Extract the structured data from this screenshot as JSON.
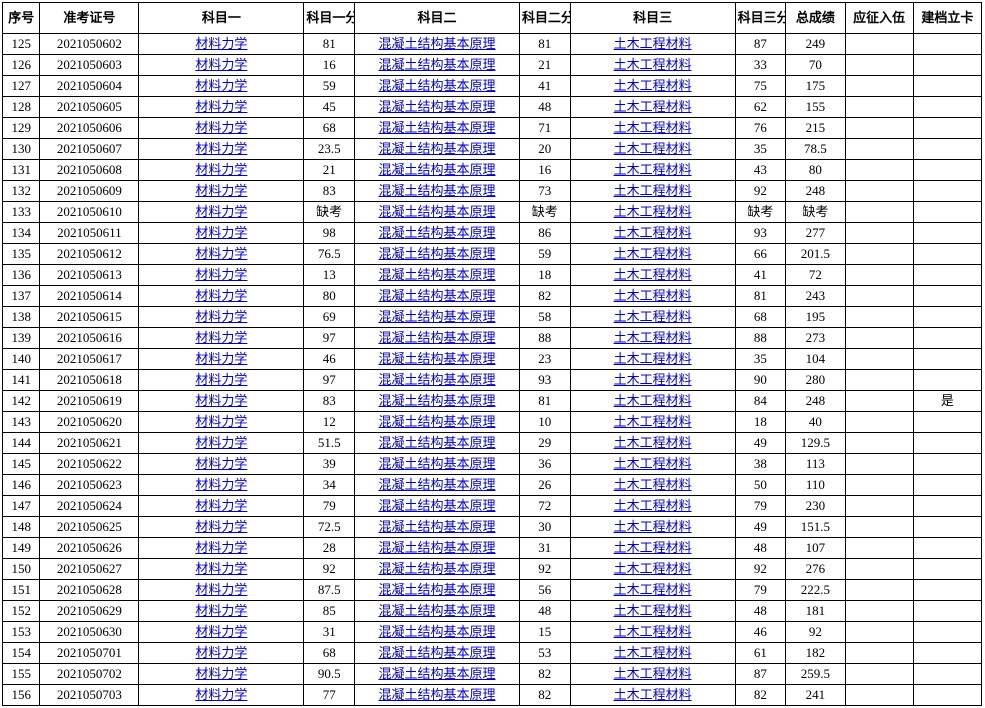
{
  "table": {
    "headers": [
      "序号",
      "准考证号",
      "科目一",
      "科目一分数",
      "科目二",
      "科目二分数",
      "科目三",
      "科目三分数",
      "总成绩",
      "应征入伍",
      "建档立卡"
    ],
    "subject1_name": "材料力学",
    "subject2_name": "混凝土结构基本原理",
    "subject3_name": "土木工程材料",
    "rows": [
      {
        "seq": "125",
        "id": "2021050602",
        "s1": "81",
        "s2": "81",
        "s3": "87",
        "tot": "249",
        "a": "",
        "b": ""
      },
      {
        "seq": "126",
        "id": "2021050603",
        "s1": "16",
        "s2": "21",
        "s3": "33",
        "tot": "70",
        "a": "",
        "b": ""
      },
      {
        "seq": "127",
        "id": "2021050604",
        "s1": "59",
        "s2": "41",
        "s3": "75",
        "tot": "175",
        "a": "",
        "b": ""
      },
      {
        "seq": "128",
        "id": "2021050605",
        "s1": "45",
        "s2": "48",
        "s3": "62",
        "tot": "155",
        "a": "",
        "b": ""
      },
      {
        "seq": "129",
        "id": "2021050606",
        "s1": "68",
        "s2": "71",
        "s3": "76",
        "tot": "215",
        "a": "",
        "b": ""
      },
      {
        "seq": "130",
        "id": "2021050607",
        "s1": "23.5",
        "s2": "20",
        "s3": "35",
        "tot": "78.5",
        "a": "",
        "b": ""
      },
      {
        "seq": "131",
        "id": "2021050608",
        "s1": "21",
        "s2": "16",
        "s3": "43",
        "tot": "80",
        "a": "",
        "b": ""
      },
      {
        "seq": "132",
        "id": "2021050609",
        "s1": "83",
        "s2": "73",
        "s3": "92",
        "tot": "248",
        "a": "",
        "b": ""
      },
      {
        "seq": "133",
        "id": "2021050610",
        "s1": "缺考",
        "s2": "缺考",
        "s3": "缺考",
        "tot": "缺考",
        "a": "",
        "b": ""
      },
      {
        "seq": "134",
        "id": "2021050611",
        "s1": "98",
        "s2": "86",
        "s3": "93",
        "tot": "277",
        "a": "",
        "b": ""
      },
      {
        "seq": "135",
        "id": "2021050612",
        "s1": "76.5",
        "s2": "59",
        "s3": "66",
        "tot": "201.5",
        "a": "",
        "b": ""
      },
      {
        "seq": "136",
        "id": "2021050613",
        "s1": "13",
        "s2": "18",
        "s3": "41",
        "tot": "72",
        "a": "",
        "b": ""
      },
      {
        "seq": "137",
        "id": "2021050614",
        "s1": "80",
        "s2": "82",
        "s3": "81",
        "tot": "243",
        "a": "",
        "b": ""
      },
      {
        "seq": "138",
        "id": "2021050615",
        "s1": "69",
        "s2": "58",
        "s3": "68",
        "tot": "195",
        "a": "",
        "b": ""
      },
      {
        "seq": "139",
        "id": "2021050616",
        "s1": "97",
        "s2": "88",
        "s3": "88",
        "tot": "273",
        "a": "",
        "b": ""
      },
      {
        "seq": "140",
        "id": "2021050617",
        "s1": "46",
        "s2": "23",
        "s3": "35",
        "tot": "104",
        "a": "",
        "b": ""
      },
      {
        "seq": "141",
        "id": "2021050618",
        "s1": "97",
        "s2": "93",
        "s3": "90",
        "tot": "280",
        "a": "",
        "b": ""
      },
      {
        "seq": "142",
        "id": "2021050619",
        "s1": "83",
        "s2": "81",
        "s3": "84",
        "tot": "248",
        "a": "",
        "b": "是"
      },
      {
        "seq": "143",
        "id": "2021050620",
        "s1": "12",
        "s2": "10",
        "s3": "18",
        "tot": "40",
        "a": "",
        "b": ""
      },
      {
        "seq": "144",
        "id": "2021050621",
        "s1": "51.5",
        "s2": "29",
        "s3": "49",
        "tot": "129.5",
        "a": "",
        "b": ""
      },
      {
        "seq": "145",
        "id": "2021050622",
        "s1": "39",
        "s2": "36",
        "s3": "38",
        "tot": "113",
        "a": "",
        "b": ""
      },
      {
        "seq": "146",
        "id": "2021050623",
        "s1": "34",
        "s2": "26",
        "s3": "50",
        "tot": "110",
        "a": "",
        "b": ""
      },
      {
        "seq": "147",
        "id": "2021050624",
        "s1": "79",
        "s2": "72",
        "s3": "79",
        "tot": "230",
        "a": "",
        "b": ""
      },
      {
        "seq": "148",
        "id": "2021050625",
        "s1": "72.5",
        "s2": "30",
        "s3": "49",
        "tot": "151.5",
        "a": "",
        "b": ""
      },
      {
        "seq": "149",
        "id": "2021050626",
        "s1": "28",
        "s2": "31",
        "s3": "48",
        "tot": "107",
        "a": "",
        "b": ""
      },
      {
        "seq": "150",
        "id": "2021050627",
        "s1": "92",
        "s2": "92",
        "s3": "92",
        "tot": "276",
        "a": "",
        "b": ""
      },
      {
        "seq": "151",
        "id": "2021050628",
        "s1": "87.5",
        "s2": "56",
        "s3": "79",
        "tot": "222.5",
        "a": "",
        "b": ""
      },
      {
        "seq": "152",
        "id": "2021050629",
        "s1": "85",
        "s2": "48",
        "s3": "48",
        "tot": "181",
        "a": "",
        "b": ""
      },
      {
        "seq": "153",
        "id": "2021050630",
        "s1": "31",
        "s2": "15",
        "s3": "46",
        "tot": "92",
        "a": "",
        "b": ""
      },
      {
        "seq": "154",
        "id": "2021050701",
        "s1": "68",
        "s2": "53",
        "s3": "61",
        "tot": "182",
        "a": "",
        "b": ""
      },
      {
        "seq": "155",
        "id": "2021050702",
        "s1": "90.5",
        "s2": "82",
        "s3": "87",
        "tot": "259.5",
        "a": "",
        "b": ""
      },
      {
        "seq": "156",
        "id": "2021050703",
        "s1": "77",
        "s2": "82",
        "s3": "82",
        "tot": "241",
        "a": "",
        "b": ""
      }
    ]
  },
  "style": {
    "link_color": "#0000cc",
    "border_color": "#000000",
    "font_family": "SimSun",
    "font_size_pt": 10
  }
}
